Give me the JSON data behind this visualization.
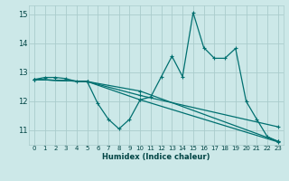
{
  "xlabel": "Humidex (Indice chaleur)",
  "background_color": "#cce8e8",
  "grid_color": "#aacccc",
  "line_color": "#007070",
  "xlim": [
    -0.5,
    23.5
  ],
  "ylim": [
    10.5,
    15.3
  ],
  "yticks": [
    11,
    12,
    13,
    14,
    15
  ],
  "xticks": [
    0,
    1,
    2,
    3,
    4,
    5,
    6,
    7,
    8,
    9,
    10,
    11,
    12,
    13,
    14,
    15,
    16,
    17,
    18,
    19,
    20,
    21,
    22,
    23
  ],
  "series1_x": [
    0,
    1,
    2,
    3,
    4,
    5,
    6,
    7,
    8,
    9,
    10,
    11,
    12,
    13,
    14,
    15,
    16,
    17,
    18,
    19,
    20,
    21,
    22,
    23
  ],
  "series1_y": [
    12.75,
    12.82,
    12.82,
    12.78,
    12.68,
    12.68,
    11.92,
    11.38,
    11.05,
    11.38,
    12.05,
    12.15,
    12.85,
    13.55,
    12.85,
    15.05,
    13.85,
    13.48,
    13.48,
    13.82,
    12.0,
    11.38,
    10.78,
    10.62
  ],
  "series2_x": [
    0,
    5,
    10,
    23
  ],
  "series2_y": [
    12.75,
    12.68,
    12.35,
    10.62
  ],
  "series3_x": [
    0,
    5,
    10,
    23
  ],
  "series3_y": [
    12.75,
    12.68,
    12.2,
    11.12
  ],
  "series4_x": [
    0,
    5,
    10,
    23
  ],
  "series4_y": [
    12.75,
    12.68,
    12.05,
    10.6
  ]
}
